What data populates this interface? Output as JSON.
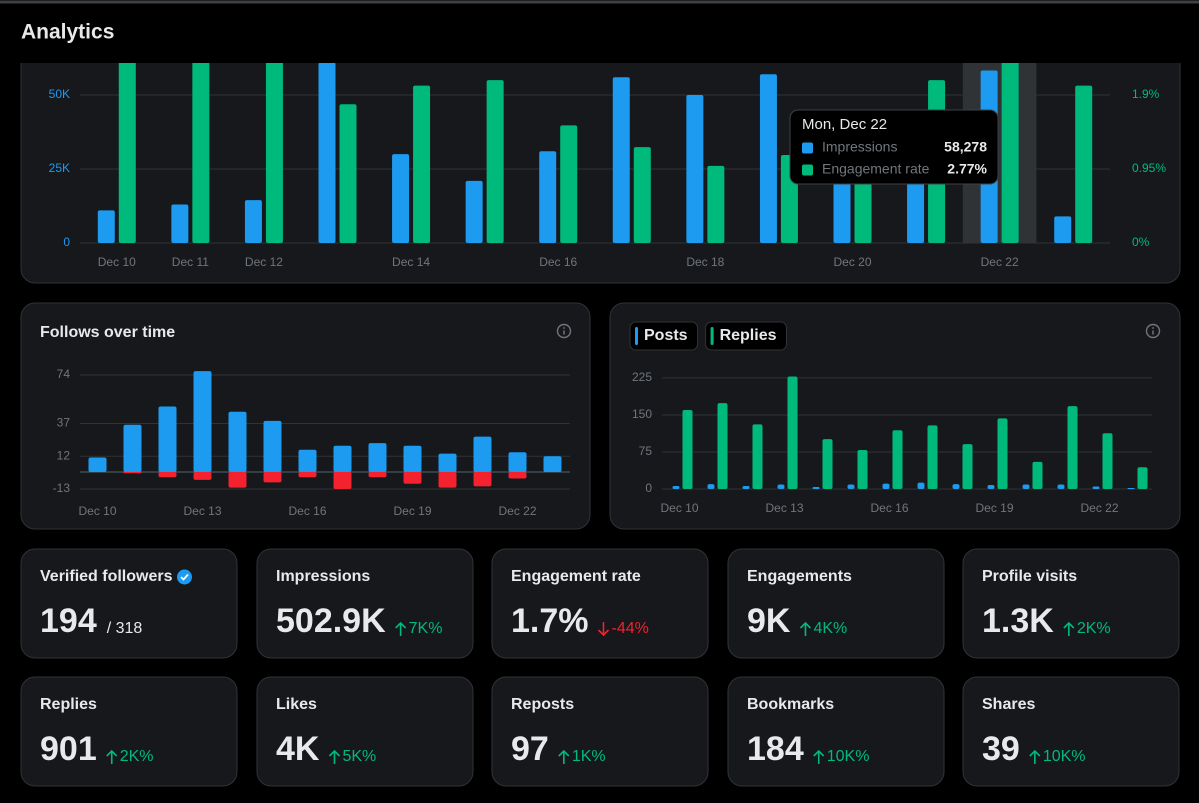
{
  "header": {
    "title": "Analytics"
  },
  "chart_data": [
    {
      "type": "bar",
      "categories": [
        "Dec 10",
        "Dec 11",
        "Dec 12",
        null,
        "Dec 14",
        null,
        "Dec 16",
        null,
        "Dec 18",
        null,
        "Dec 20",
        null,
        "Dec 22",
        null
      ],
      "series": [
        {
          "name": "Impressions",
          "color": "#1d9bf0",
          "values": [
            11000,
            13000,
            14500,
            61000,
            30000,
            21000,
            31000,
            56000,
            50000,
            57000,
            40000,
            35000,
            58278,
            9000
          ]
        },
        {
          "name": "Engagement rate",
          "color": "#00ba7c",
          "axis": "y2",
          "values": [
            2.4,
            2.4,
            2.4,
            1.78,
            2.02,
            2.09,
            1.51,
            1.23,
            0.99,
            1.13,
            0.8,
            2.09,
            2.77,
            2.02
          ]
        }
      ],
      "ylim": [
        0,
        60800
      ],
      "yticks": [
        0,
        {
          "value": 25000,
          "label": "25K"
        },
        {
          "value": 50000,
          "label": "50K"
        }
      ],
      "y2lim": [
        0,
        2.31
      ],
      "y2ticks": [
        {
          "value": 0,
          "label": "0%"
        },
        {
          "value": 0.95,
          "label": "0.95%"
        },
        {
          "value": 1.9,
          "label": "1.9%"
        }
      ],
      "grid": true,
      "highlight_index": 12,
      "tooltip": {
        "title": "Mon, Dec 22",
        "values": [
          "58,278",
          "2.77%"
        ]
      }
    },
    {
      "type": "bar",
      "title": "Follows over time",
      "stacked": true,
      "categories": [
        "Dec 10",
        null,
        null,
        "Dec 13",
        null,
        null,
        "Dec 16",
        null,
        null,
        "Dec 19",
        null,
        null,
        "Dec 22",
        null
      ],
      "series": [
        {
          "color": "#1d9bf0",
          "values": [
            11,
            36,
            50,
            77,
            46,
            39,
            17,
            20,
            22,
            20,
            14,
            27,
            15,
            12
          ]
        },
        {
          "color": "#f4212e",
          "values": [
            0,
            -1,
            -4,
            -6,
            -12,
            -8,
            -4,
            -13,
            -4,
            -9,
            -12,
            -11,
            -5,
            0
          ]
        }
      ],
      "ylim": [
        -15,
        78
      ],
      "yticks": [
        74,
        37,
        12,
        -13
      ],
      "grid": true
    },
    {
      "type": "bar",
      "categories": [
        "Dec 10",
        null,
        null,
        "Dec 13",
        null,
        null,
        "Dec 16",
        null,
        null,
        "Dec 19",
        null,
        null,
        "Dec 22",
        null
      ],
      "series": [
        {
          "name": "Posts",
          "color": "#1d9bf0",
          "values": [
            6,
            10,
            6,
            9,
            4,
            9,
            11,
            13,
            10,
            8,
            9,
            9,
            5,
            2
          ]
        },
        {
          "name": "Replies",
          "color": "#00ba7c",
          "values": [
            160,
            174,
            131,
            228,
            101,
            79,
            119,
            129,
            91,
            143,
            55,
            168,
            113,
            44
          ]
        }
      ],
      "ylim": [
        0,
        235
      ],
      "yticks": [
        0,
        75,
        150,
        225
      ],
      "grid": true
    }
  ],
  "cards": [
    {
      "title": "Verified followers",
      "value": "194",
      "total": "/ 318",
      "verified": true
    },
    {
      "title": "Impressions",
      "value": "502.9K",
      "change": "7K%",
      "direction": "up"
    },
    {
      "title": "Engagement rate",
      "value": "1.7%",
      "change": "-44%",
      "direction": "down"
    },
    {
      "title": "Engagements",
      "value": "9K",
      "change": "4K%",
      "direction": "up"
    },
    {
      "title": "Profile visits",
      "value": "1.3K",
      "change": "2K%",
      "direction": "up"
    },
    {
      "title": "Replies",
      "value": "901",
      "change": "2K%",
      "direction": "up"
    },
    {
      "title": "Likes",
      "value": "4K",
      "change": "5K%",
      "direction": "up"
    },
    {
      "title": "Reposts",
      "value": "97",
      "change": "1K%",
      "direction": "up"
    },
    {
      "title": "Bookmarks",
      "value": "184",
      "change": "10K%",
      "direction": "up"
    },
    {
      "title": "Shares",
      "value": "39",
      "change": "10K%",
      "direction": "up"
    }
  ]
}
